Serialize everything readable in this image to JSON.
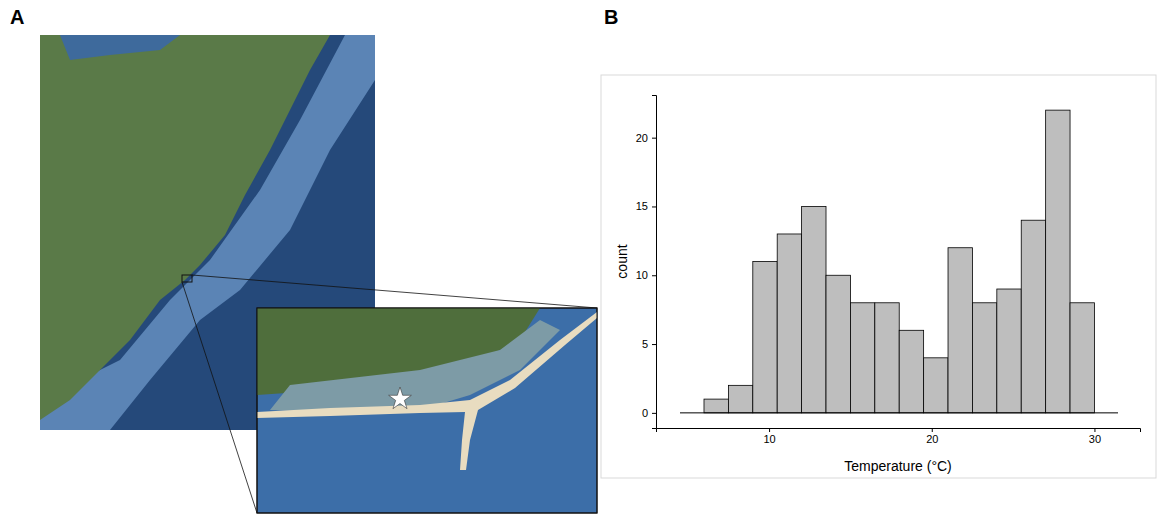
{
  "panels": [
    {
      "label": "A",
      "type": "map"
    },
    {
      "label": "B",
      "type": "histogram"
    }
  ],
  "chart_data": {
    "type": "histogram",
    "x_label": "Temperature (°C)",
    "y_label": "count",
    "bins": [
      6,
      7.5,
      9,
      10.5,
      12,
      13.5,
      15,
      16.5,
      18,
      19.5,
      21,
      22.5,
      24,
      25.5,
      27,
      28.5,
      30
    ],
    "values": [
      1,
      2,
      11,
      13,
      15,
      10,
      8,
      8,
      6,
      4,
      12,
      8,
      9,
      14,
      22,
      8
    ],
    "color": "#bebebe",
    "xlim": [
      3.05,
      32.8
    ],
    "xticks": [
      10,
      20,
      30
    ],
    "ylim": [
      -1.1,
      23.1
    ],
    "yticks": [
      0,
      5,
      10,
      15,
      20
    ],
    "grid": false
  }
}
